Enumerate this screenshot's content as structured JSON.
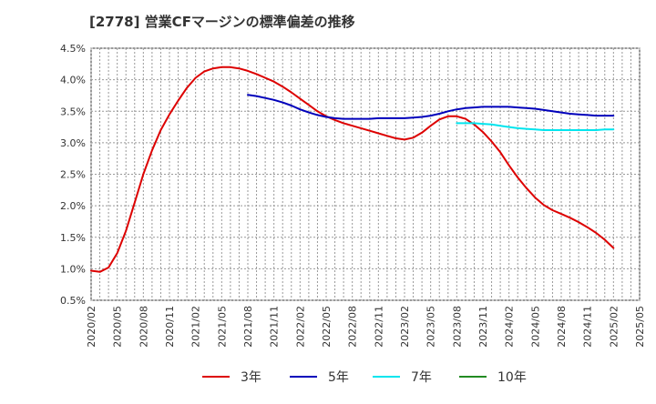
{
  "chart_data": {
    "type": "line",
    "title": "[2778]  営業CFマージンの標準偏差の推移",
    "xlabel": "",
    "ylabel": "",
    "ylim": [
      0.5,
      4.5
    ],
    "y_ticks": [
      "0.5%",
      "1.0%",
      "1.5%",
      "2.0%",
      "2.5%",
      "3.0%",
      "3.5%",
      "4.0%",
      "4.5%"
    ],
    "x_ticks": [
      "2020/02",
      "2020/05",
      "2020/08",
      "2020/11",
      "2021/02",
      "2021/05",
      "2021/08",
      "2021/11",
      "2022/02",
      "2022/05",
      "2022/08",
      "2022/11",
      "2023/02",
      "2023/05",
      "2023/08",
      "2023/11",
      "2024/02",
      "2024/05",
      "2024/08",
      "2024/11",
      "2025/02",
      "2025/05"
    ],
    "grid": true,
    "legend_position": "bottom",
    "series": [
      {
        "name": "3年",
        "color": "#dd0000",
        "points": [
          [
            "2020/02",
            0.97
          ],
          [
            "2020/03",
            0.95
          ],
          [
            "2020/04",
            1.02
          ],
          [
            "2020/05",
            1.25
          ],
          [
            "2020/06",
            1.6
          ],
          [
            "2020/07",
            2.05
          ],
          [
            "2020/08",
            2.5
          ],
          [
            "2020/09",
            2.88
          ],
          [
            "2020/10",
            3.2
          ],
          [
            "2020/11",
            3.45
          ],
          [
            "2020/12",
            3.67
          ],
          [
            "2021/01",
            3.87
          ],
          [
            "2021/02",
            4.03
          ],
          [
            "2021/03",
            4.13
          ],
          [
            "2021/04",
            4.18
          ],
          [
            "2021/05",
            4.2
          ],
          [
            "2021/06",
            4.2
          ],
          [
            "2021/07",
            4.18
          ],
          [
            "2021/08",
            4.14
          ],
          [
            "2021/09",
            4.09
          ],
          [
            "2021/10",
            4.03
          ],
          [
            "2021/11",
            3.97
          ],
          [
            "2021/12",
            3.89
          ],
          [
            "2022/01",
            3.8
          ],
          [
            "2022/02",
            3.7
          ],
          [
            "2022/03",
            3.6
          ],
          [
            "2022/04",
            3.5
          ],
          [
            "2022/05",
            3.42
          ],
          [
            "2022/06",
            3.36
          ],
          [
            "2022/07",
            3.31
          ],
          [
            "2022/08",
            3.27
          ],
          [
            "2022/09",
            3.23
          ],
          [
            "2022/10",
            3.19
          ],
          [
            "2022/11",
            3.15
          ],
          [
            "2022/12",
            3.11
          ],
          [
            "2023/01",
            3.07
          ],
          [
            "2023/02",
            3.05
          ],
          [
            "2023/03",
            3.08
          ],
          [
            "2023/04",
            3.16
          ],
          [
            "2023/05",
            3.27
          ],
          [
            "2023/06",
            3.37
          ],
          [
            "2023/07",
            3.42
          ],
          [
            "2023/08",
            3.42
          ],
          [
            "2023/09",
            3.38
          ],
          [
            "2023/10",
            3.29
          ],
          [
            "2023/11",
            3.17
          ],
          [
            "2023/12",
            3.02
          ],
          [
            "2024/01",
            2.85
          ],
          [
            "2024/02",
            2.64
          ],
          [
            "2024/03",
            2.45
          ],
          [
            "2024/04",
            2.28
          ],
          [
            "2024/05",
            2.13
          ],
          [
            "2024/06",
            2.01
          ],
          [
            "2024/07",
            1.93
          ],
          [
            "2024/08",
            1.87
          ],
          [
            "2024/09",
            1.81
          ],
          [
            "2024/10",
            1.74
          ],
          [
            "2024/11",
            1.66
          ],
          [
            "2024/12",
            1.57
          ],
          [
            "2025/01",
            1.46
          ],
          [
            "2025/02",
            1.33
          ]
        ]
      },
      {
        "name": "5年",
        "color": "#0000bb",
        "points": [
          [
            "2021/08",
            3.76
          ],
          [
            "2021/09",
            3.74
          ],
          [
            "2021/10",
            3.71
          ],
          [
            "2021/11",
            3.68
          ],
          [
            "2021/12",
            3.64
          ],
          [
            "2022/01",
            3.59
          ],
          [
            "2022/02",
            3.53
          ],
          [
            "2022/03",
            3.48
          ],
          [
            "2022/04",
            3.44
          ],
          [
            "2022/05",
            3.41
          ],
          [
            "2022/06",
            3.39
          ],
          [
            "2022/07",
            3.38
          ],
          [
            "2022/08",
            3.38
          ],
          [
            "2022/09",
            3.38
          ],
          [
            "2022/10",
            3.38
          ],
          [
            "2022/11",
            3.39
          ],
          [
            "2022/12",
            3.39
          ],
          [
            "2023/01",
            3.39
          ],
          [
            "2023/02",
            3.39
          ],
          [
            "2023/03",
            3.4
          ],
          [
            "2023/04",
            3.41
          ],
          [
            "2023/05",
            3.43
          ],
          [
            "2023/06",
            3.46
          ],
          [
            "2023/07",
            3.5
          ],
          [
            "2023/08",
            3.53
          ],
          [
            "2023/09",
            3.55
          ],
          [
            "2023/10",
            3.56
          ],
          [
            "2023/11",
            3.57
          ],
          [
            "2023/12",
            3.57
          ],
          [
            "2024/01",
            3.57
          ],
          [
            "2024/02",
            3.57
          ],
          [
            "2024/03",
            3.56
          ],
          [
            "2024/04",
            3.55
          ],
          [
            "2024/05",
            3.54
          ],
          [
            "2024/06",
            3.52
          ],
          [
            "2024/07",
            3.5
          ],
          [
            "2024/08",
            3.48
          ],
          [
            "2024/09",
            3.46
          ],
          [
            "2024/10",
            3.45
          ],
          [
            "2024/11",
            3.44
          ],
          [
            "2024/12",
            3.43
          ],
          [
            "2025/01",
            3.43
          ],
          [
            "2025/02",
            3.43
          ]
        ]
      },
      {
        "name": "7年",
        "color": "#00e5ee",
        "points": [
          [
            "2023/08",
            3.31
          ],
          [
            "2023/09",
            3.31
          ],
          [
            "2023/10",
            3.31
          ],
          [
            "2023/11",
            3.3
          ],
          [
            "2023/12",
            3.29
          ],
          [
            "2024/01",
            3.27
          ],
          [
            "2024/02",
            3.25
          ],
          [
            "2024/03",
            3.23
          ],
          [
            "2024/04",
            3.22
          ],
          [
            "2024/05",
            3.21
          ],
          [
            "2024/06",
            3.2
          ],
          [
            "2024/07",
            3.2
          ],
          [
            "2024/08",
            3.2
          ],
          [
            "2024/09",
            3.2
          ],
          [
            "2024/10",
            3.2
          ],
          [
            "2024/11",
            3.2
          ],
          [
            "2024/12",
            3.2
          ],
          [
            "2025/01",
            3.21
          ],
          [
            "2025/02",
            3.21
          ]
        ]
      },
      {
        "name": "10年",
        "color": "#228b22",
        "points": []
      }
    ]
  }
}
